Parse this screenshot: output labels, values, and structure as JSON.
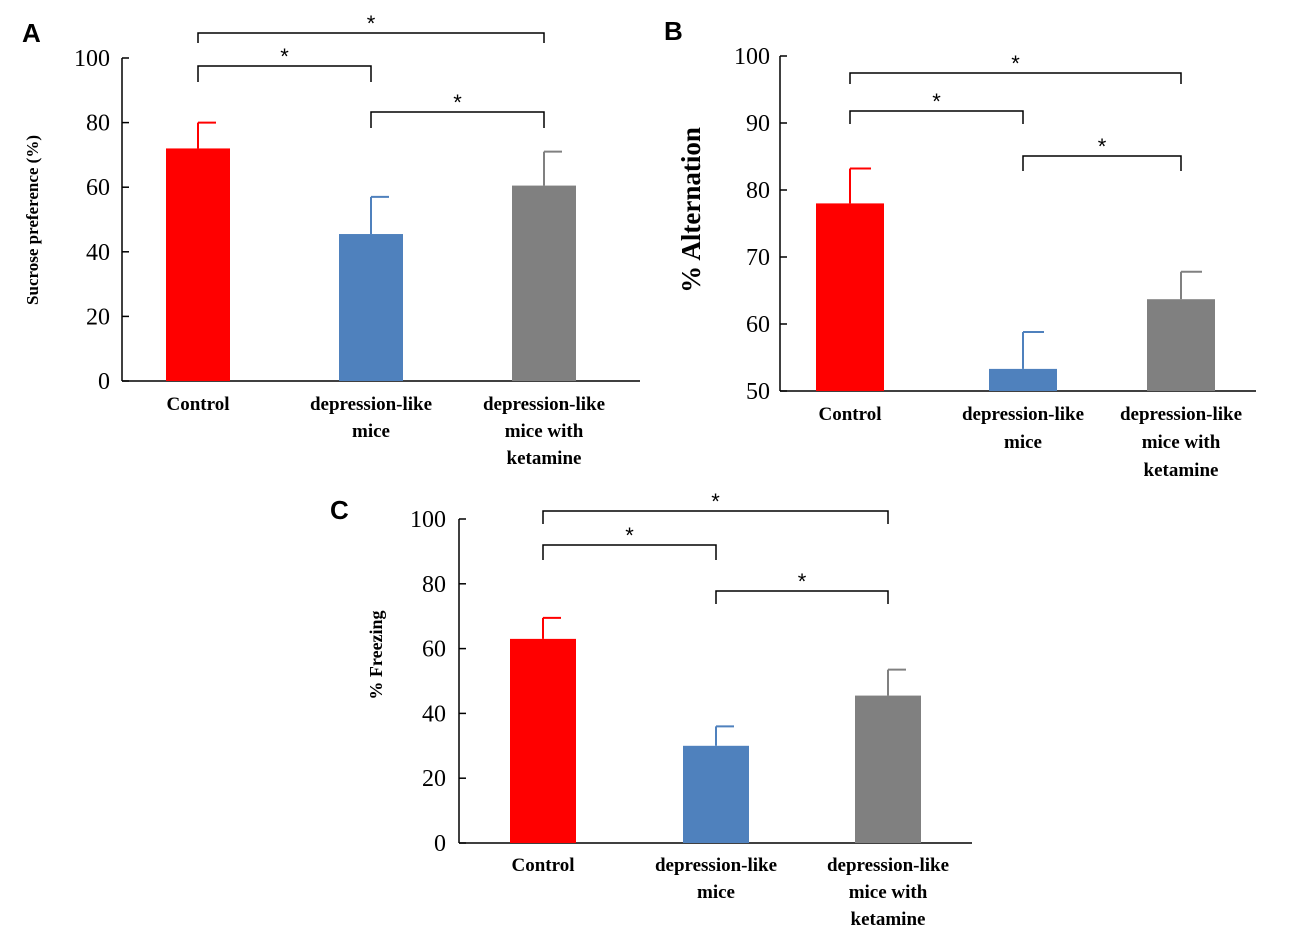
{
  "chart_data": [
    {
      "panel": "A",
      "type": "bar",
      "title": "",
      "ylabel": "Sucrose preference (%)",
      "ylim": [
        0,
        100
      ],
      "yticks": [
        0,
        20,
        40,
        60,
        80,
        100
      ],
      "categories": [
        [
          "Control"
        ],
        [
          "depression-like",
          "mice"
        ],
        [
          "depression-like",
          "mice with",
          "ketamine"
        ]
      ],
      "values": [
        72,
        45.5,
        60.5
      ],
      "errors": [
        8,
        11.5,
        10.5
      ],
      "colors": [
        "#ff0000",
        "#4f81bd",
        "#808080"
      ],
      "significance": [
        {
          "from": 0,
          "to": 2,
          "label": "*"
        },
        {
          "from": 0,
          "to": 1,
          "label": "*"
        },
        {
          "from": 1,
          "to": 2,
          "label": "*"
        }
      ]
    },
    {
      "panel": "B",
      "type": "bar",
      "title": "",
      "ylabel": "% Alternation",
      "ylim": [
        50,
        100
      ],
      "yticks": [
        50,
        60,
        70,
        80,
        90,
        100
      ],
      "categories": [
        [
          "Control"
        ],
        [
          "depression-like",
          "mice"
        ],
        [
          "depression-like",
          "mice with",
          "ketamine"
        ]
      ],
      "values": [
        78,
        53.3,
        63.7
      ],
      "errors": [
        5.2,
        5.5,
        4.1
      ],
      "colors": [
        "#ff0000",
        "#4f81bd",
        "#808080"
      ],
      "significance": [
        {
          "from": 0,
          "to": 2,
          "label": "*"
        },
        {
          "from": 0,
          "to": 1,
          "label": "*"
        },
        {
          "from": 1,
          "to": 2,
          "label": "*"
        }
      ]
    },
    {
      "panel": "C",
      "type": "bar",
      "title": "",
      "ylabel": "% Freezing",
      "ylim": [
        0,
        100
      ],
      "yticks": [
        0,
        20,
        40,
        60,
        80,
        100
      ],
      "categories": [
        [
          "Control"
        ],
        [
          "depression-like",
          "mice"
        ],
        [
          "depression-like",
          "mice with",
          "ketamine"
        ]
      ],
      "values": [
        63,
        30,
        45.5
      ],
      "errors": [
        6.5,
        6,
        8
      ],
      "colors": [
        "#ff0000",
        "#4f81bd",
        "#808080"
      ],
      "significance": [
        {
          "from": 0,
          "to": 2,
          "label": "*"
        },
        {
          "from": 0,
          "to": 1,
          "label": "*"
        },
        {
          "from": 1,
          "to": 2,
          "label": "*"
        }
      ]
    }
  ]
}
